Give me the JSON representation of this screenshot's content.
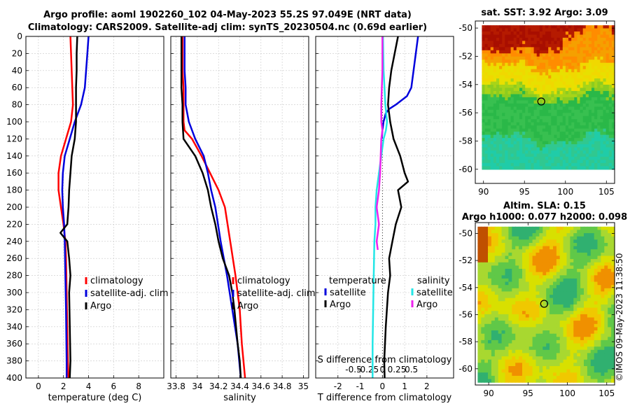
{
  "header": {
    "line1": "Argo profile: aoml 1902260_102 04-May-2023 55.2S 97.049E (NRT data)",
    "line2": "Climatology: CARS2009. Satellite-adj clim: synTS_20230504.nc (0.69d earlier)"
  },
  "footer": {
    "stamp": "©IMOS 09-May-2023 11:38:50"
  },
  "colors": {
    "climatology": "#ff0000",
    "satellite": "#0000dd",
    "argo": "#000000",
    "sat_salinity": "#22e6e6",
    "argo_salinity": "#ee22ee"
  },
  "chart_data": [
    {
      "id": "temperature",
      "type": "line",
      "xlabel": "temperature (deg C)",
      "ylabel": "",
      "xlim": [
        -1,
        10
      ],
      "ylim": [
        400,
        0
      ],
      "xticks": [
        0,
        2,
        4,
        6,
        8
      ],
      "xtick_labels": [
        "0",
        "2",
        "4",
        "6",
        "8"
      ],
      "yticks": [
        0,
        20,
        40,
        60,
        80,
        100,
        120,
        140,
        160,
        180,
        200,
        220,
        240,
        260,
        280,
        300,
        320,
        340,
        360,
        380,
        400
      ],
      "ytick_labels": [
        "0",
        "20",
        "40",
        "60",
        "80",
        "100",
        "120",
        "140",
        "160",
        "180",
        "200",
        "220",
        "240",
        "260",
        "280",
        "300",
        "320",
        "340",
        "360",
        "380",
        "400"
      ],
      "grid": true,
      "legend": [
        "climatology",
        "satellite-adj. clim",
        "Argo"
      ],
      "series": [
        {
          "name": "climatology",
          "color": "#ff0000",
          "x": [
            2.55,
            2.6,
            2.65,
            2.7,
            2.75,
            2.6,
            2.2,
            1.8,
            1.6,
            1.6,
            1.8,
            2.0,
            2.15,
            2.2,
            2.25,
            2.3,
            2.35,
            2.4
          ],
          "y": [
            0,
            20,
            40,
            60,
            80,
            100,
            120,
            140,
            160,
            180,
            200,
            220,
            240,
            260,
            300,
            340,
            380,
            400
          ]
        },
        {
          "name": "satellite-adj. clim",
          "color": "#0000dd",
          "x": [
            4.0,
            3.9,
            3.8,
            3.7,
            3.4,
            2.9,
            2.5,
            2.1,
            1.95,
            1.9,
            1.95,
            2.05,
            2.1,
            2.15,
            2.2,
            2.25,
            2.25
          ],
          "y": [
            0,
            20,
            40,
            60,
            80,
            100,
            120,
            140,
            160,
            180,
            200,
            220,
            240,
            280,
            320,
            380,
            400
          ]
        },
        {
          "name": "Argo",
          "color": "#000000",
          "x": [
            3.1,
            3.05,
            3.05,
            3.0,
            3.0,
            3.0,
            2.9,
            2.65,
            2.55,
            2.45,
            2.4,
            2.3,
            1.75,
            2.3,
            2.45,
            2.55,
            2.45,
            2.5,
            2.55,
            2.5
          ],
          "y": [
            0,
            20,
            40,
            60,
            80,
            100,
            120,
            140,
            160,
            180,
            200,
            220,
            230,
            240,
            260,
            280,
            300,
            340,
            380,
            400
          ]
        }
      ]
    },
    {
      "id": "salinity",
      "type": "line",
      "xlabel": "salinity",
      "ylabel": "",
      "xlim": [
        33.75,
        35.05
      ],
      "ylim": [
        400,
        0
      ],
      "xticks": [
        33.8,
        34,
        34.2,
        34.4,
        34.6,
        34.8,
        35
      ],
      "xtick_labels": [
        "33.8",
        "34",
        "34.2",
        "34.4",
        "34.6",
        "34.8",
        "35"
      ],
      "grid": true,
      "legend": [
        "climatology",
        "satellite-adj. clim",
        "Argo"
      ],
      "series": [
        {
          "name": "climatology",
          "color": "#ff0000",
          "x": [
            33.86,
            33.86,
            33.87,
            33.87,
            33.87,
            33.88,
            33.95,
            34.04,
            34.12,
            34.2,
            34.26,
            34.31,
            34.36,
            34.4,
            34.42,
            34.45
          ],
          "y": [
            0,
            40,
            60,
            80,
            100,
            110,
            120,
            140,
            160,
            180,
            200,
            240,
            280,
            320,
            360,
            400
          ]
        },
        {
          "name": "satellite-adj. clim",
          "color": "#0000dd",
          "x": [
            33.88,
            33.88,
            33.89,
            33.89,
            33.92,
            33.98,
            34.06,
            34.1,
            34.13,
            34.17,
            34.22,
            34.28,
            34.33,
            34.38,
            34.41
          ],
          "y": [
            0,
            40,
            60,
            80,
            100,
            120,
            140,
            160,
            180,
            200,
            240,
            280,
            320,
            360,
            400
          ]
        },
        {
          "name": "Argo",
          "color": "#000000",
          "x": [
            33.85,
            33.85,
            33.85,
            33.86,
            33.86,
            33.87,
            33.98,
            34.05,
            34.1,
            34.13,
            34.17,
            34.2,
            34.24,
            34.3,
            34.33,
            34.35,
            34.38,
            34.4,
            34.41
          ],
          "y": [
            0,
            20,
            60,
            80,
            100,
            120,
            140,
            160,
            180,
            200,
            220,
            240,
            260,
            280,
            300,
            320,
            360,
            380,
            400
          ]
        }
      ]
    },
    {
      "id": "differences",
      "type": "line",
      "xlabel": "T difference from climatology",
      "top_label": "S difference from climatology",
      "ylabel": "",
      "xlim": [
        -3.0,
        3.2
      ],
      "ylim": [
        400,
        0
      ],
      "xticks": [
        -2,
        -1,
        0,
        1,
        2
      ],
      "xtick_labels": [
        "-2",
        "-1",
        "0",
        "1",
        "2"
      ],
      "s_ticks": [
        -0.5,
        -0.25,
        0,
        0.25,
        0.5
      ],
      "s_tick_labels": [
        "-0.5",
        "-0.25",
        "0",
        "0.25",
        "0.5"
      ],
      "grid": true,
      "legend_temperature": {
        "title": "temperature",
        "items": [
          "satellite",
          "Argo"
        ]
      },
      "legend_salinity": {
        "title": "salinity",
        "items": [
          "satellite",
          "Argo"
        ]
      },
      "series": [
        {
          "name": "T satellite",
          "color": "#0000dd",
          "x": [
            1.6,
            1.5,
            1.4,
            1.3,
            1.1,
            0.6,
            0.3,
            0.15,
            0.05,
            0.0,
            -0.03
          ],
          "y": [
            0,
            20,
            40,
            60,
            70,
            80,
            85,
            90,
            100,
            110,
            120
          ]
        },
        {
          "name": "T Argo",
          "color": "#000000",
          "x": [
            0.7,
            0.55,
            0.4,
            0.3,
            0.25,
            0.35,
            0.5,
            0.8,
            1.0,
            1.15,
            0.7,
            0.85,
            0.6,
            0.45,
            0.3,
            0.35,
            0.25,
            0.15,
            0.08,
            0.1
          ],
          "y": [
            0,
            20,
            40,
            60,
            80,
            100,
            120,
            140,
            160,
            170,
            180,
            200,
            220,
            240,
            260,
            280,
            300,
            340,
            380,
            400
          ]
        },
        {
          "name": "S satellite",
          "color": "#22e6e6",
          "x": [
            0.01,
            0.02,
            0.05,
            0.08,
            0.06,
            0.02,
            -0.02,
            -0.06,
            -0.1,
            -0.12,
            -0.12,
            -0.14,
            -0.15,
            -0.16,
            -0.17,
            -0.17
          ],
          "y": [
            0,
            40,
            80,
            100,
            110,
            120,
            140,
            160,
            180,
            200,
            220,
            240,
            280,
            320,
            360,
            400
          ]
        },
        {
          "name": "S Argo",
          "color": "#ee22ee",
          "x": [
            0.0,
            0.0,
            -0.02,
            -0.02,
            0.0,
            -0.02,
            -0.04,
            -0.06,
            -0.1,
            -0.06,
            -0.1,
            -0.08
          ],
          "y": [
            0,
            40,
            80,
            100,
            110,
            120,
            160,
            180,
            200,
            220,
            240,
            250
          ]
        }
      ]
    },
    {
      "id": "sst-map",
      "type": "heatmap",
      "title": "sat. SST: 3.92 Argo: 3.09",
      "xlim": [
        89,
        106
      ],
      "ylim": [
        -61,
        -49.5
      ],
      "xticks": [
        90,
        95,
        100,
        105
      ],
      "xtick_labels": [
        "90",
        "95",
        "100",
        "105"
      ],
      "yticks": [
        -50,
        -52,
        -54,
        -56,
        -58,
        -60
      ],
      "ytick_labels": [
        "-50",
        "-52",
        "-54",
        "-56",
        "-58",
        "-60"
      ],
      "data_extent": {
        "lon": [
          89.8,
          106
        ],
        "lat": [
          -60,
          -49.8
        ]
      },
      "argo_position": {
        "lon": 97.05,
        "lat": -55.2
      }
    },
    {
      "id": "sla-map",
      "type": "heatmap",
      "title": "Altim. SLA: 0.15",
      "subtitle": "Argo h1000: 0.077 h2000: 0.098",
      "xlim": [
        88.3,
        106
      ],
      "ylim": [
        -61.2,
        -49.2
      ],
      "xticks": [
        90,
        95,
        100,
        105
      ],
      "xtick_labels": [
        "90",
        "95",
        "100",
        "105"
      ],
      "yticks": [
        -50,
        -52,
        -54,
        -56,
        -58,
        -60
      ],
      "ytick_labels": [
        "-50",
        "-52",
        "-54",
        "-56",
        "-58",
        "-60"
      ],
      "data_extent": {
        "lon": [
          88.6,
          106
        ],
        "lat": [
          -61,
          -49.5
        ]
      },
      "argo_position": {
        "lon": 97.05,
        "lat": -55.2
      }
    }
  ]
}
